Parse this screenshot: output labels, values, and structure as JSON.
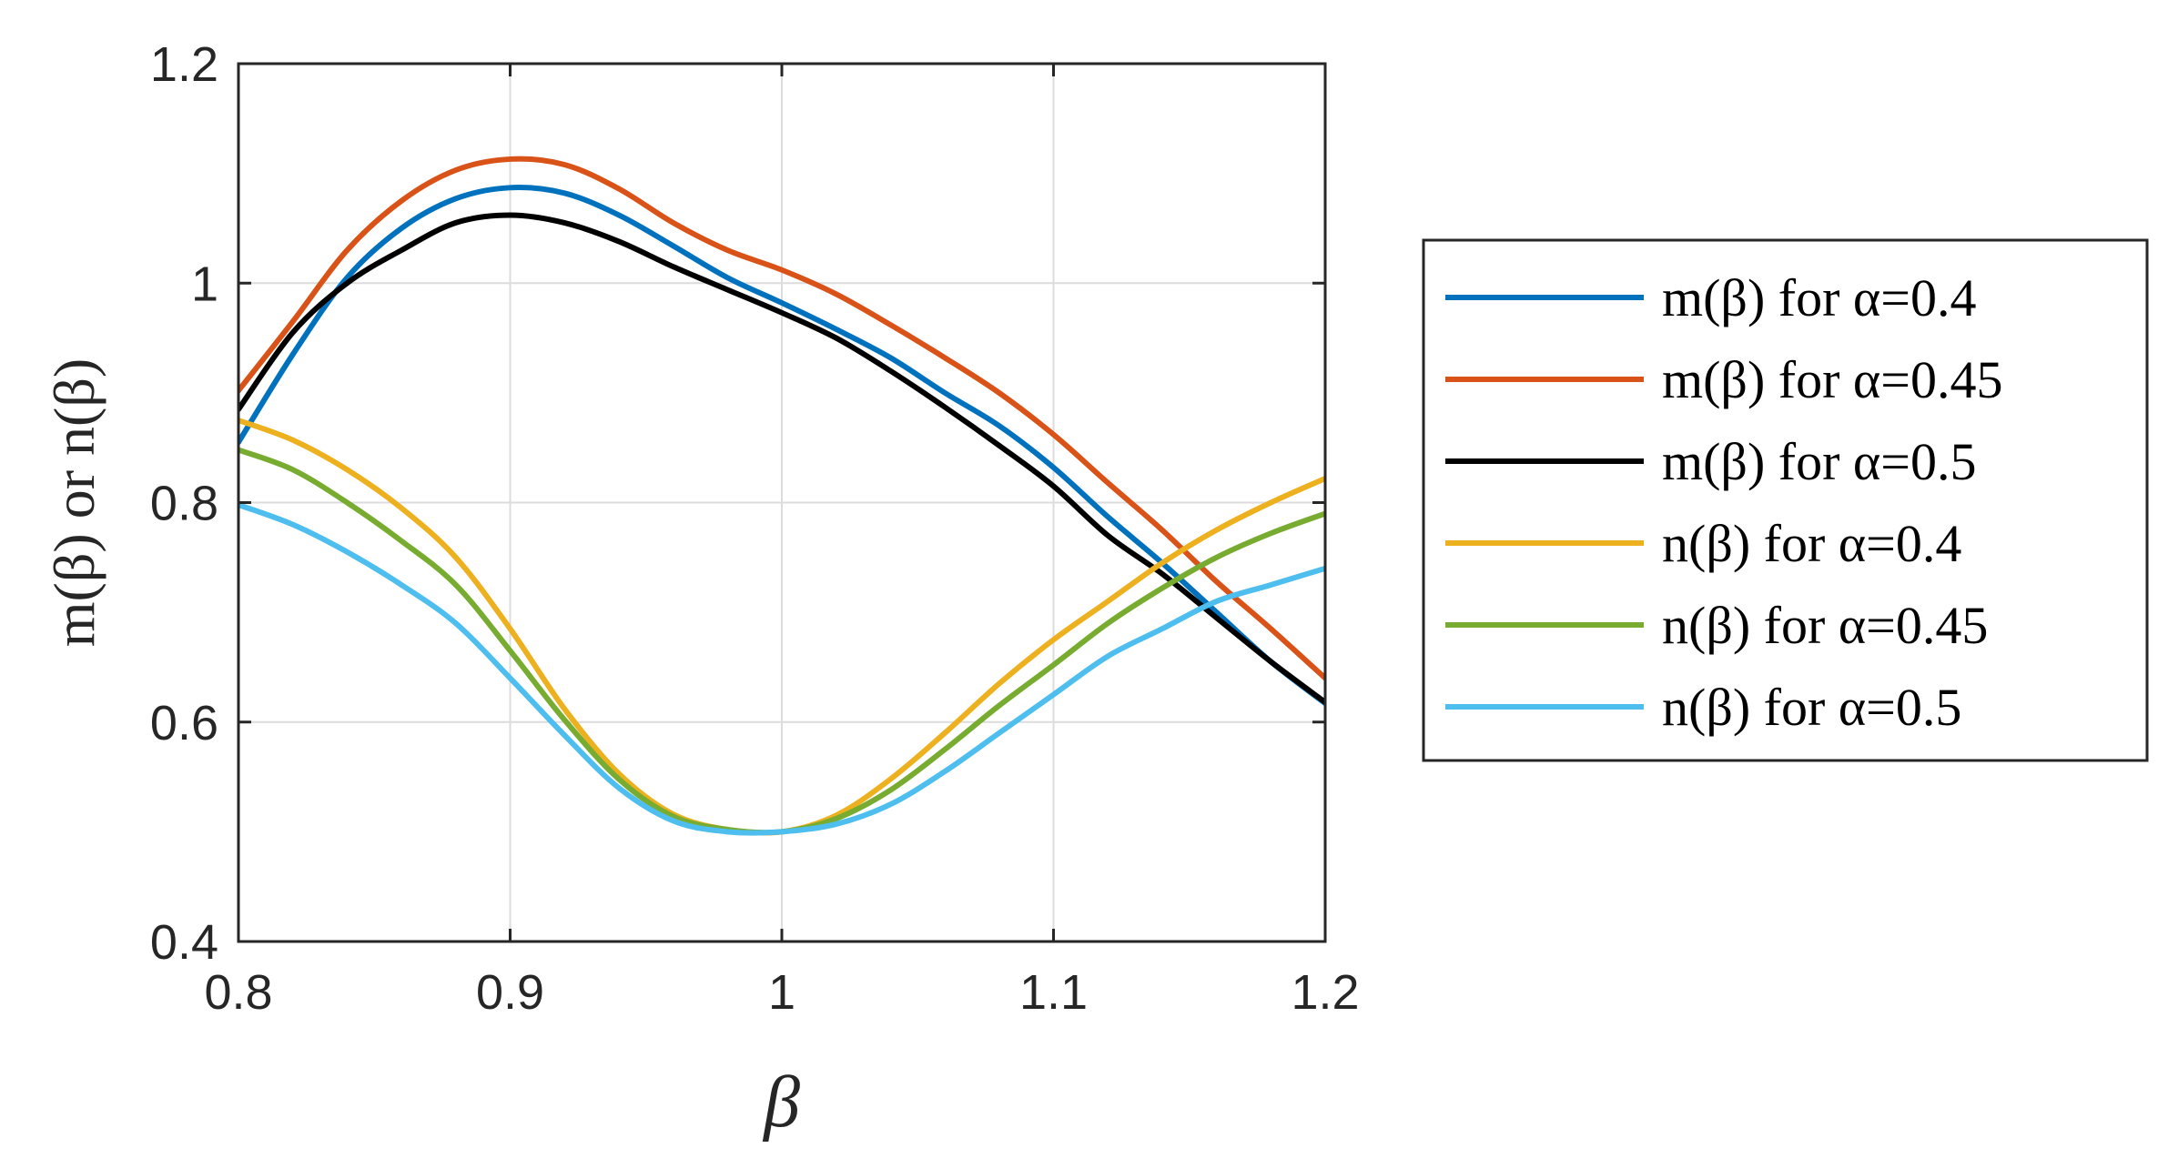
{
  "chart_data": {
    "type": "line",
    "title": "",
    "xlabel": "β",
    "ylabel": "m(β) or n(β)",
    "xlim": [
      0.8,
      1.2
    ],
    "ylim": [
      0.4,
      1.2
    ],
    "xticks": [
      0.8,
      0.9,
      1.0,
      1.1,
      1.2
    ],
    "xtick_labels": [
      "0.8",
      "0.9",
      "1",
      "1.1",
      "1.2"
    ],
    "yticks": [
      0.4,
      0.6,
      0.8,
      1.0,
      1.2
    ],
    "ytick_labels": [
      "0.4",
      "0.6",
      "0.8",
      "1",
      "1.2"
    ],
    "grid": true,
    "legend_position": "outside-right",
    "x": [
      0.8,
      0.82,
      0.84,
      0.86,
      0.88,
      0.9,
      0.92,
      0.94,
      0.96,
      0.98,
      1.0,
      1.02,
      1.04,
      1.06,
      1.08,
      1.1,
      1.12,
      1.14,
      1.16,
      1.18,
      1.2
    ],
    "series": [
      {
        "name": "m(β) for α=0.4",
        "color": "#0072BD",
        "values": [
          0.855,
          0.935,
          1.005,
          1.05,
          1.077,
          1.087,
          1.082,
          1.062,
          1.034,
          1.005,
          0.982,
          0.958,
          0.932,
          0.9,
          0.87,
          0.832,
          0.787,
          0.745,
          0.7,
          0.655,
          0.617
        ]
      },
      {
        "name": "m(β) for α=0.45",
        "color": "#D95319",
        "values": [
          0.902,
          0.965,
          1.03,
          1.075,
          1.103,
          1.113,
          1.108,
          1.086,
          1.055,
          1.03,
          1.012,
          0.99,
          0.962,
          0.932,
          0.9,
          0.862,
          0.818,
          0.775,
          0.728,
          0.685,
          0.64
        ]
      },
      {
        "name": "m(β) for α=0.5",
        "color": "#000000",
        "values": [
          0.885,
          0.955,
          1.0,
          1.03,
          1.055,
          1.062,
          1.055,
          1.038,
          1.015,
          0.994,
          0.973,
          0.95,
          0.92,
          0.887,
          0.852,
          0.815,
          0.77,
          0.735,
          0.695,
          0.655,
          0.618
        ]
      },
      {
        "name": "n(β) for α=0.4",
        "color": "#EDB120",
        "values": [
          0.875,
          0.857,
          0.83,
          0.795,
          0.75,
          0.685,
          0.612,
          0.553,
          0.516,
          0.502,
          0.5,
          0.515,
          0.548,
          0.59,
          0.635,
          0.675,
          0.71,
          0.745,
          0.775,
          0.8,
          0.822
        ]
      },
      {
        "name": "n(β) for α=0.45",
        "color": "#77AC30",
        "values": [
          0.848,
          0.83,
          0.8,
          0.765,
          0.725,
          0.665,
          0.602,
          0.548,
          0.514,
          0.502,
          0.5,
          0.512,
          0.538,
          0.575,
          0.615,
          0.652,
          0.69,
          0.722,
          0.75,
          0.772,
          0.79
        ]
      },
      {
        "name": "n(β) for α=0.5",
        "color": "#4DBEEE",
        "values": [
          0.798,
          0.78,
          0.755,
          0.725,
          0.69,
          0.64,
          0.588,
          0.54,
          0.51,
          0.5,
          0.5,
          0.507,
          0.525,
          0.555,
          0.59,
          0.625,
          0.66,
          0.685,
          0.71,
          0.725,
          0.74
        ]
      }
    ]
  }
}
